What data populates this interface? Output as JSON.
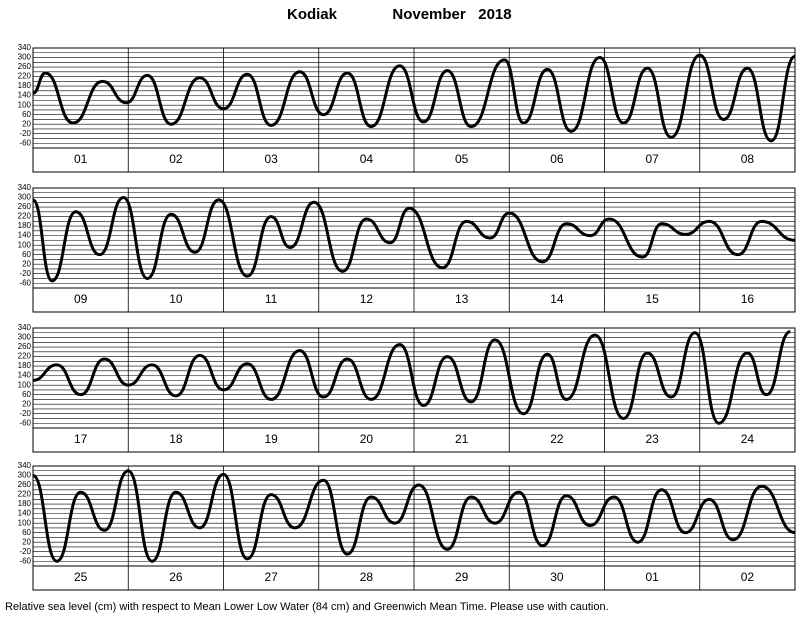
{
  "header": {
    "title": "Kodiak",
    "subtitle": "November   2018"
  },
  "footnote": "Relative sea level (cm) with respect to Mean Lower Low Water (84 cm) and Greenwich Mean Time. Please use with caution.",
  "chart_data": [
    {
      "type": "line",
      "categories": [
        "01",
        "02",
        "03",
        "04",
        "05",
        "06",
        "07",
        "08"
      ],
      "x": [
        0,
        0.13,
        0.42,
        0.73,
        0.98,
        1.2,
        1.45,
        1.75,
        2.0,
        2.25,
        2.5,
        2.8,
        3.05,
        3.3,
        3.55,
        3.85,
        4.1,
        4.35,
        4.6,
        4.95,
        5.15,
        5.4,
        5.65,
        5.95,
        6.2,
        6.45,
        6.7,
        7.0,
        7.25,
        7.5,
        7.75,
        8.0
      ],
      "series": [
        {
          "color": "#000000",
          "values": [
            150,
            235,
            25,
            200,
            110,
            225,
            20,
            215,
            85,
            230,
            15,
            240,
            60,
            235,
            10,
            265,
            30,
            245,
            10,
            290,
            25,
            250,
            -10,
            300,
            25,
            255,
            -35,
            310,
            40,
            255,
            -50,
            305
          ]
        }
      ],
      "ylim": [
        -80,
        340
      ],
      "yticks": [
        340,
        320,
        300,
        280,
        260,
        240,
        220,
        200,
        180,
        160,
        140,
        120,
        100,
        80,
        60,
        40,
        20,
        0,
        -20,
        -40,
        -60,
        -80
      ]
    },
    {
      "type": "line",
      "categories": [
        "09",
        "10",
        "11",
        "12",
        "13",
        "14",
        "15",
        "16"
      ],
      "x": [
        0,
        0.2,
        0.45,
        0.7,
        0.95,
        1.2,
        1.45,
        1.7,
        1.95,
        2.25,
        2.5,
        2.7,
        2.95,
        3.25,
        3.5,
        3.75,
        3.95,
        4.3,
        4.55,
        4.8,
        5.0,
        5.35,
        5.6,
        5.85,
        6.05,
        6.4,
        6.6,
        6.85,
        7.1,
        7.4,
        7.65,
        8.0
      ],
      "series": [
        {
          "color": "#000000",
          "values": [
            290,
            -50,
            240,
            60,
            300,
            -40,
            230,
            70,
            290,
            -30,
            220,
            90,
            280,
            -10,
            210,
            110,
            255,
            5,
            200,
            130,
            235,
            30,
            190,
            140,
            210,
            50,
            190,
            145,
            200,
            60,
            200,
            120
          ]
        }
      ],
      "ylim": [
        -80,
        340
      ],
      "yticks": [
        340,
        320,
        300,
        280,
        260,
        240,
        220,
        200,
        180,
        160,
        140,
        120,
        100,
        80,
        60,
        40,
        20,
        0,
        -20,
        -40,
        -60,
        -80
      ]
    },
    {
      "type": "line",
      "categories": [
        "17",
        "18",
        "19",
        "20",
        "21",
        "22",
        "23",
        "24"
      ],
      "x": [
        0,
        0.25,
        0.5,
        0.75,
        1.0,
        1.25,
        1.5,
        1.75,
        2.0,
        2.25,
        2.5,
        2.8,
        3.05,
        3.3,
        3.55,
        3.85,
        4.1,
        4.35,
        4.6,
        4.85,
        5.15,
        5.4,
        5.6,
        5.9,
        6.2,
        6.45,
        6.7,
        6.95,
        7.2,
        7.5,
        7.7,
        7.95
      ],
      "series": [
        {
          "color": "#000000",
          "values": [
            120,
            185,
            60,
            210,
            100,
            185,
            55,
            225,
            80,
            190,
            40,
            245,
            50,
            210,
            40,
            270,
            15,
            220,
            30,
            290,
            -20,
            230,
            40,
            310,
            -40,
            235,
            50,
            320,
            -60,
            235,
            60,
            325
          ]
        }
      ],
      "ylim": [
        -80,
        340
      ],
      "yticks": [
        340,
        320,
        300,
        280,
        260,
        240,
        220,
        200,
        180,
        160,
        140,
        120,
        100,
        80,
        60,
        40,
        20,
        0,
        -20,
        -40,
        -60,
        -80
      ]
    },
    {
      "type": "line",
      "categories": [
        "25",
        "26",
        "27",
        "28",
        "29",
        "30",
        "01",
        "02"
      ],
      "x": [
        0,
        0.25,
        0.5,
        0.75,
        1.0,
        1.25,
        1.5,
        1.75,
        2.0,
        2.25,
        2.5,
        2.75,
        3.05,
        3.3,
        3.55,
        3.8,
        4.05,
        4.35,
        4.6,
        4.85,
        5.1,
        5.35,
        5.6,
        5.85,
        6.1,
        6.35,
        6.6,
        6.85,
        7.1,
        7.35,
        7.65,
        8.0
      ],
      "series": [
        {
          "color": "#000000",
          "values": [
            300,
            -60,
            230,
            70,
            320,
            -60,
            230,
            80,
            305,
            -50,
            220,
            80,
            280,
            -30,
            210,
            100,
            260,
            -10,
            210,
            100,
            230,
            5,
            215,
            90,
            210,
            20,
            240,
            60,
            200,
            30,
            255,
            60
          ]
        }
      ],
      "ylim": [
        -80,
        340
      ],
      "yticks": [
        340,
        320,
        300,
        280,
        260,
        240,
        220,
        200,
        180,
        160,
        140,
        120,
        100,
        80,
        60,
        40,
        20,
        0,
        -20,
        -40,
        -60,
        -80
      ]
    }
  ]
}
